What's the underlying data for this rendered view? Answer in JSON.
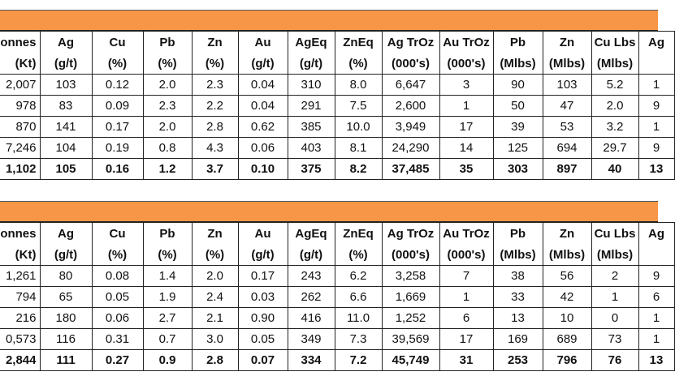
{
  "tables": [
    {
      "header": [
        [
          "onnes",
          "(Kt)"
        ],
        [
          "Ag",
          "(g/t)"
        ],
        [
          "Cu",
          "(%)"
        ],
        [
          "Pb",
          "(%)"
        ],
        [
          "Zn",
          "(%)"
        ],
        [
          "Au",
          "(g/t)"
        ],
        [
          "AgEq",
          "(g/t)"
        ],
        [
          "ZnEq",
          "(%)"
        ],
        [
          "Ag TrOz",
          "(000's)"
        ],
        [
          "Au TrOz",
          "(000's)"
        ],
        [
          "Pb",
          "(Mlbs)"
        ],
        [
          "Zn",
          "(Mlbs)"
        ],
        [
          "Cu Lbs",
          "(Mlbs)"
        ],
        [
          "Ag",
          ""
        ]
      ],
      "rows": [
        [
          "2,007",
          "103",
          "0.12",
          "2.0",
          "2.3",
          "0.04",
          "310",
          "8.0",
          "6,647",
          "3",
          "90",
          "103",
          "5.2",
          "1"
        ],
        [
          "978",
          "83",
          "0.09",
          "2.3",
          "2.2",
          "0.04",
          "291",
          "7.5",
          "2,600",
          "1",
          "50",
          "47",
          "2.0",
          "9"
        ],
        [
          "870",
          "141",
          "0.17",
          "2.0",
          "2.8",
          "0.62",
          "385",
          "10.0",
          "3,949",
          "17",
          "39",
          "53",
          "3.2",
          "1"
        ],
        [
          "7,246",
          "104",
          "0.19",
          "0.8",
          "4.3",
          "0.06",
          "403",
          "8.1",
          "24,290",
          "14",
          "125",
          "694",
          "29.7",
          "9"
        ],
        [
          "1,102",
          "105",
          "0.16",
          "1.2",
          "3.7",
          "0.10",
          "375",
          "8.2",
          "37,485",
          "35",
          "303",
          "897",
          "40",
          "13"
        ]
      ]
    },
    {
      "header": [
        [
          "onnes",
          "(Kt)"
        ],
        [
          "Ag",
          "(g/t)"
        ],
        [
          "Cu",
          "(%)"
        ],
        [
          "Pb",
          "(%)"
        ],
        [
          "Zn",
          "(%)"
        ],
        [
          "Au",
          "(g/t)"
        ],
        [
          "AgEq",
          "(g/t)"
        ],
        [
          "ZnEq",
          "(%)"
        ],
        [
          "Ag TrOz",
          "(000's)"
        ],
        [
          "Au TrOz",
          "(000's)"
        ],
        [
          "Pb",
          "(Mlbs)"
        ],
        [
          "Zn",
          "(Mlbs)"
        ],
        [
          "Cu Lbs",
          "(Mlbs)"
        ],
        [
          "Ag",
          ""
        ]
      ],
      "rows": [
        [
          "1,261",
          "80",
          "0.08",
          "1.4",
          "2.0",
          "0.17",
          "243",
          "6.2",
          "3,258",
          "7",
          "38",
          "56",
          "2",
          "9"
        ],
        [
          "794",
          "65",
          "0.05",
          "1.9",
          "2.4",
          "0.03",
          "262",
          "6.6",
          "1,669",
          "1",
          "33",
          "42",
          "1",
          "6"
        ],
        [
          "216",
          "180",
          "0.06",
          "2.7",
          "2.1",
          "0.90",
          "416",
          "11.0",
          "1,252",
          "6",
          "13",
          "10",
          "0",
          "1"
        ],
        [
          "0,573",
          "116",
          "0.31",
          "0.7",
          "3.0",
          "0.05",
          "349",
          "7.3",
          "39,569",
          "17",
          "169",
          "689",
          "73",
          "1"
        ],
        [
          "2,844",
          "111",
          "0.27",
          "0.9",
          "2.8",
          "0.07",
          "334",
          "7.2",
          "45,749",
          "31",
          "253",
          "796",
          "76",
          "13"
        ]
      ]
    }
  ]
}
